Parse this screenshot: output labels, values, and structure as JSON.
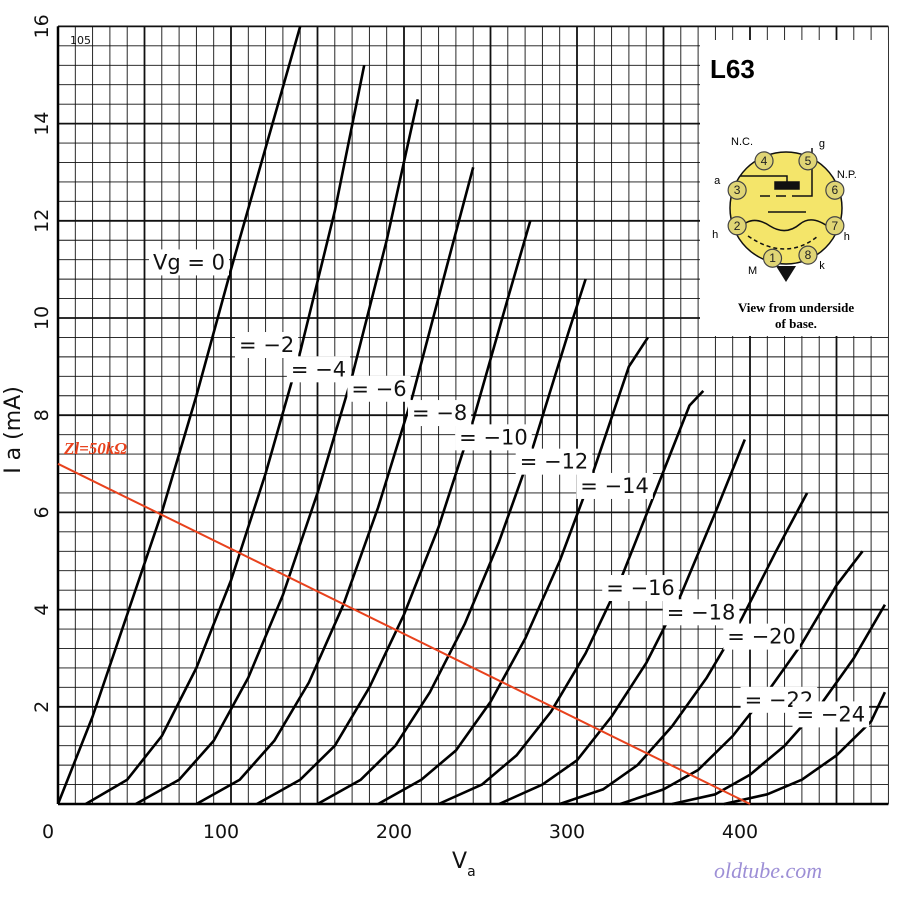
{
  "chart_data": {
    "type": "line",
    "title": "L63",
    "corner_number": "105",
    "xlabel_main": "V",
    "xlabel_sub": "a",
    "ylabel": "I a (mA)",
    "xlim": [
      0,
      480
    ],
    "ylim": [
      0,
      16
    ],
    "x_ticks": [
      "0",
      "100",
      "200",
      "300",
      "400"
    ],
    "y_ticks": [
      "2",
      "4",
      "6",
      "8",
      "10",
      "12",
      "14",
      "16"
    ],
    "grid": true,
    "series": [
      {
        "name": "Vg = 0",
        "vg": 0,
        "x": [
          0,
          20,
          40,
          60,
          80,
          100,
          120,
          140
        ],
        "y": [
          0,
          1.8,
          3.9,
          6.0,
          8.4,
          11.0,
          13.5,
          16.0
        ]
      },
      {
        "name": "= −2",
        "vg": -2,
        "x": [
          16,
          40,
          60,
          80,
          100,
          120,
          140,
          160,
          177
        ],
        "y": [
          0,
          0.5,
          1.4,
          2.8,
          4.6,
          6.8,
          9.3,
          12.2,
          15.2
        ]
      },
      {
        "name": "= −4",
        "vg": -4,
        "x": [
          45,
          70,
          90,
          110,
          130,
          150,
          170,
          190,
          208
        ],
        "y": [
          0,
          0.5,
          1.3,
          2.6,
          4.3,
          6.4,
          8.8,
          11.6,
          14.5
        ]
      },
      {
        "name": "= −6",
        "vg": -6,
        "x": [
          80,
          105,
          125,
          145,
          165,
          185,
          205,
          225,
          240
        ],
        "y": [
          0,
          0.5,
          1.3,
          2.5,
          4.1,
          6.1,
          8.4,
          11.1,
          13.1
        ]
      },
      {
        "name": "= −8",
        "vg": -8,
        "x": [
          115,
          140,
          160,
          180,
          200,
          220,
          240,
          260,
          273
        ],
        "y": [
          0,
          0.5,
          1.2,
          2.4,
          3.9,
          5.7,
          7.9,
          10.4,
          12.0
        ]
      },
      {
        "name": "= −10",
        "vg": -10,
        "x": [
          150,
          175,
          195,
          215,
          235,
          255,
          275,
          295,
          305
        ],
        "y": [
          0,
          0.5,
          1.2,
          2.3,
          3.7,
          5.4,
          7.4,
          9.7,
          10.8
        ]
      },
      {
        "name": "= −12",
        "vg": -12,
        "x": [
          185,
          210,
          230,
          250,
          270,
          290,
          310,
          330,
          341
        ],
        "y": [
          0,
          0.5,
          1.1,
          2.1,
          3.4,
          5.0,
          6.9,
          9.0,
          9.6
        ]
      },
      {
        "name": "= −14",
        "vg": -14,
        "x": [
          220,
          245,
          265,
          285,
          305,
          325,
          345,
          365,
          373
        ],
        "y": [
          0,
          0.4,
          1.0,
          1.9,
          3.1,
          4.6,
          6.4,
          8.2,
          8.5
        ]
      },
      {
        "name": "= −16",
        "vg": -16,
        "x": [
          255,
          280,
          300,
          320,
          340,
          360,
          380,
          397
        ],
        "y": [
          0,
          0.4,
          0.9,
          1.8,
          2.9,
          4.3,
          6.0,
          7.5
        ]
      },
      {
        "name": "= −18",
        "vg": -18,
        "x": [
          290,
          315,
          335,
          355,
          375,
          395,
          415,
          433
        ],
        "y": [
          0,
          0.3,
          0.8,
          1.6,
          2.6,
          3.8,
          5.2,
          6.4
        ]
      },
      {
        "name": "= −20",
        "vg": -20,
        "x": [
          325,
          350,
          370,
          390,
          410,
          430,
          450,
          465
        ],
        "y": [
          0,
          0.3,
          0.7,
          1.4,
          2.3,
          3.3,
          4.5,
          5.2
        ]
      },
      {
        "name": "= −22",
        "vg": -22,
        "x": [
          355,
          380,
          400,
          420,
          440,
          460,
          478
        ],
        "y": [
          0,
          0.2,
          0.6,
          1.2,
          2.0,
          3.0,
          4.1
        ]
      },
      {
        "name": "= −24",
        "vg": -24,
        "x": [
          385,
          410,
          430,
          450,
          470,
          478
        ],
        "y": [
          0,
          0.2,
          0.5,
          1.0,
          1.7,
          2.3
        ]
      }
    ],
    "load_line": {
      "label": "Zl=50kΩ",
      "x": [
        0,
        400
      ],
      "y": [
        7,
        0
      ],
      "color": "#e8421d"
    },
    "label_color": "#e8421d",
    "watermark": "oldtube.com",
    "watermark_color": "#9d8fd6"
  },
  "inset": {
    "title": "L63",
    "caption_line1": "View from underside",
    "caption_line2": "of base.",
    "pins": [
      {
        "num": "1",
        "label": "M"
      },
      {
        "num": "2",
        "label": "h"
      },
      {
        "num": "3",
        "label": "a"
      },
      {
        "num": "4",
        "label": "N.C."
      },
      {
        "num": "5",
        "label": "g"
      },
      {
        "num": "6",
        "label": "N.P."
      },
      {
        "num": "7",
        "label": "h"
      },
      {
        "num": "8",
        "label": "k"
      }
    ],
    "base_color": "#f4e56a",
    "pin_color": "#e0d575"
  }
}
